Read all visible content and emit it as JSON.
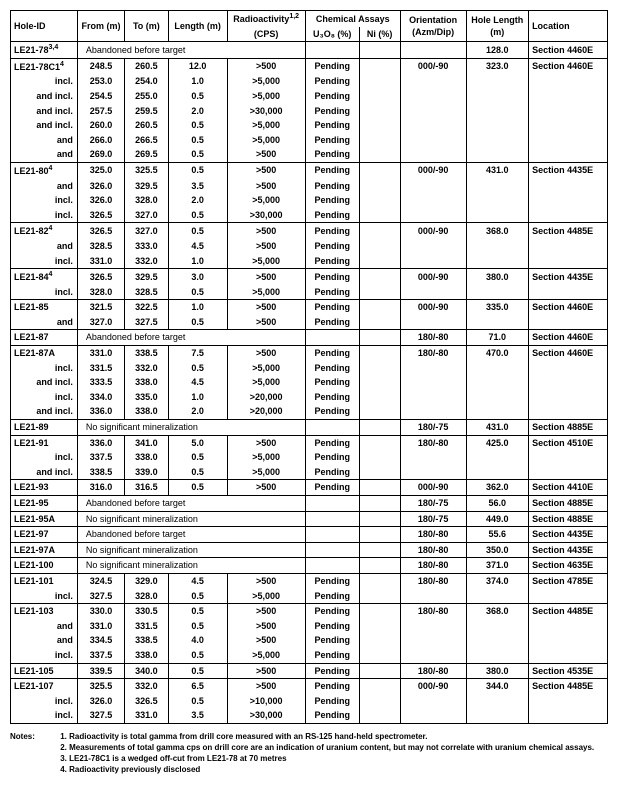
{
  "headers": {
    "hole": "Hole-ID",
    "from": "From (m)",
    "to": "To (m)",
    "len": "Length (m)",
    "rad_top": "Radioactivity",
    "rad_sup": "1,2",
    "rad_sub": "(CPS)",
    "chem": "Chemical Assays",
    "u": "U₃O₈ (%)",
    "ni": "Ni (%)",
    "orient": "Orientation (Azm/Dip)",
    "hl": "Hole Length (m)",
    "loc": "Location"
  },
  "rows": [
    {
      "sec": true,
      "hole": "LE21-78",
      "sup": "3,4",
      "note": "Abandoned before target",
      "hl": "128.0",
      "loc": "Section 4460E"
    },
    {
      "sec": true,
      "hole": "LE21-78C1",
      "sup": "4",
      "from": "248.5",
      "to": "260.5",
      "len": "12.0",
      "rad": ">500",
      "u": "Pending",
      "or": "000/-90",
      "hl": "323.0",
      "loc": "Section 4460E"
    },
    {
      "hole": "incl.",
      "from": "253.0",
      "to": "254.0",
      "len": "1.0",
      "rad": ">5,000",
      "u": "Pending"
    },
    {
      "hole": "and incl.",
      "from": "254.5",
      "to": "255.0",
      "len": "0.5",
      "rad": ">5,000",
      "u": "Pending"
    },
    {
      "hole": "and incl.",
      "from": "257.5",
      "to": "259.5",
      "len": "2.0",
      "rad": ">30,000",
      "u": "Pending"
    },
    {
      "hole": "and incl.",
      "from": "260.0",
      "to": "260.5",
      "len": "0.5",
      "rad": ">5,000",
      "u": "Pending"
    },
    {
      "hole": "and",
      "from": "266.0",
      "to": "266.5",
      "len": "0.5",
      "rad": ">5,000",
      "u": "Pending"
    },
    {
      "hole": "and",
      "from": "269.0",
      "to": "269.5",
      "len": "0.5",
      "rad": ">500",
      "u": "Pending"
    },
    {
      "sec": true,
      "hole": "LE21-80",
      "sup": "4",
      "from": "325.0",
      "to": "325.5",
      "len": "0.5",
      "rad": ">500",
      "u": "Pending",
      "or": "000/-90",
      "hl": "431.0",
      "loc": "Section 4435E"
    },
    {
      "hole": "and",
      "from": "326.0",
      "to": "329.5",
      "len": "3.5",
      "rad": ">500",
      "u": "Pending"
    },
    {
      "hole": "incl.",
      "from": "326.0",
      "to": "328.0",
      "len": "2.0",
      "rad": ">5,000",
      "u": "Pending"
    },
    {
      "hole": "incl.",
      "from": "326.5",
      "to": "327.0",
      "len": "0.5",
      "rad": ">30,000",
      "u": "Pending"
    },
    {
      "sec": true,
      "hole": "LE21-82",
      "sup": "4",
      "from": "326.5",
      "to": "327.0",
      "len": "0.5",
      "rad": ">500",
      "u": "Pending",
      "or": "000/-90",
      "hl": "368.0",
      "loc": "Section 4485E"
    },
    {
      "hole": "and",
      "from": "328.5",
      "to": "333.0",
      "len": "4.5",
      "rad": ">500",
      "u": "Pending"
    },
    {
      "hole": "incl.",
      "from": "331.0",
      "to": "332.0",
      "len": "1.0",
      "rad": ">5,000",
      "u": "Pending"
    },
    {
      "sec": true,
      "hole": "LE21-84",
      "sup": "4",
      "from": "326.5",
      "to": "329.5",
      "len": "3.0",
      "rad": ">500",
      "u": "Pending",
      "or": "000/-90",
      "hl": "380.0",
      "loc": "Section 4435E"
    },
    {
      "hole": "incl.",
      "from": "328.0",
      "to": "328.5",
      "len": "0.5",
      "rad": ">5,000",
      "u": "Pending"
    },
    {
      "sec": true,
      "hole": "LE21-85",
      "from": "321.5",
      "to": "322.5",
      "len": "1.0",
      "rad": ">500",
      "u": "Pending",
      "or": "000/-90",
      "hl": "335.0",
      "loc": "Section 4460E"
    },
    {
      "hole": "and",
      "from": "327.0",
      "to": "327.5",
      "len": "0.5",
      "rad": ">500",
      "u": "Pending"
    },
    {
      "sec": true,
      "hole": "LE21-87",
      "note": "Abandoned before target",
      "or": "180/-80",
      "hl": "71.0",
      "loc": "Section 4460E"
    },
    {
      "sec": true,
      "hole": "LE21-87A",
      "from": "331.0",
      "to": "338.5",
      "len": "7.5",
      "rad": ">500",
      "u": "Pending",
      "or": "180/-80",
      "hl": "470.0",
      "loc": "Section 4460E"
    },
    {
      "hole": "incl.",
      "from": "331.5",
      "to": "332.0",
      "len": "0.5",
      "rad": ">5,000",
      "u": "Pending"
    },
    {
      "hole": "and incl.",
      "from": "333.5",
      "to": "338.0",
      "len": "4.5",
      "rad": ">5,000",
      "u": "Pending"
    },
    {
      "hole": "incl.",
      "from": "334.0",
      "to": "335.0",
      "len": "1.0",
      "rad": ">20,000",
      "u": "Pending"
    },
    {
      "hole": "and incl.",
      "from": "336.0",
      "to": "338.0",
      "len": "2.0",
      "rad": ">20,000",
      "u": "Pending"
    },
    {
      "sec": true,
      "hole": "LE21-89",
      "note": "No significant mineralization",
      "or": "180/-75",
      "hl": "431.0",
      "loc": "Section 4885E"
    },
    {
      "sec": true,
      "hole": "LE21-91",
      "from": "336.0",
      "to": "341.0",
      "len": "5.0",
      "rad": ">500",
      "u": "Pending",
      "or": "180/-80",
      "hl": "425.0",
      "loc": "Section 4510E"
    },
    {
      "hole": "incl.",
      "from": "337.5",
      "to": "338.0",
      "len": "0.5",
      "rad": ">5,000",
      "u": "Pending"
    },
    {
      "hole": "and incl.",
      "from": "338.5",
      "to": "339.0",
      "len": "0.5",
      "rad": ">5,000",
      "u": "Pending"
    },
    {
      "sec": true,
      "hole": "LE21-93",
      "from": "316.0",
      "to": "316.5",
      "len": "0.5",
      "rad": ">500",
      "u": "Pending",
      "or": "000/-90",
      "hl": "362.0",
      "loc": "Section 4410E"
    },
    {
      "sec": true,
      "hole": "LE21-95",
      "note": "Abandoned before target",
      "or": "180/-75",
      "hl": "56.0",
      "loc": "Section 4885E"
    },
    {
      "sec": true,
      "hole": "LE21-95A",
      "note": "No significant mineralization",
      "or": "180/-75",
      "hl": "449.0",
      "loc": "Section 4885E"
    },
    {
      "sec": true,
      "hole": "LE21-97",
      "note": "Abandoned before target",
      "or": "180/-80",
      "hl": "55.6",
      "loc": "Section 4435E"
    },
    {
      "sec": true,
      "hole": "LE21-97A",
      "note": "No significant mineralization",
      "or": "180/-80",
      "hl": "350.0",
      "loc": "Section 4435E"
    },
    {
      "sec": true,
      "hole": "LE21-100",
      "note": "No significant mineralization",
      "or": "180/-80",
      "hl": "371.0",
      "loc": "Section 4635E"
    },
    {
      "sec": true,
      "hole": "LE21-101",
      "from": "324.5",
      "to": "329.0",
      "len": "4.5",
      "rad": ">500",
      "u": "Pending",
      "or": "180/-80",
      "hl": "374.0",
      "loc": "Section 4785E"
    },
    {
      "hole": "incl.",
      "from": "327.5",
      "to": "328.0",
      "len": "0.5",
      "rad": ">5,000",
      "u": "Pending"
    },
    {
      "sec": true,
      "hole": "LE21-103",
      "from": "330.0",
      "to": "330.5",
      "len": "0.5",
      "rad": ">500",
      "u": "Pending",
      "or": "180/-80",
      "hl": "368.0",
      "loc": "Section 4485E"
    },
    {
      "hole": "and",
      "from": "331.0",
      "to": "331.5",
      "len": "0.5",
      "rad": ">500",
      "u": "Pending"
    },
    {
      "hole": "and",
      "from": "334.5",
      "to": "338.5",
      "len": "4.0",
      "rad": ">500",
      "u": "Pending"
    },
    {
      "hole": "incl.",
      "from": "337.5",
      "to": "338.0",
      "len": "0.5",
      "rad": ">5,000",
      "u": "Pending"
    },
    {
      "sec": true,
      "hole": "LE21-105",
      "from": "339.5",
      "to": "340.0",
      "len": "0.5",
      "rad": ">500",
      "u": "Pending",
      "or": "180/-80",
      "hl": "380.0",
      "loc": "Section 4535E"
    },
    {
      "sec": true,
      "hole": "LE21-107",
      "from": "325.5",
      "to": "332.0",
      "len": "6.5",
      "rad": ">500",
      "u": "Pending",
      "or": "000/-90",
      "hl": "344.0",
      "loc": "Section 4485E"
    },
    {
      "hole": "incl.",
      "from": "326.0",
      "to": "326.5",
      "len": "0.5",
      "rad": ">10,000",
      "u": "Pending"
    },
    {
      "last": true,
      "hole": "incl.",
      "from": "327.5",
      "to": "331.0",
      "len": "3.5",
      "rad": ">30,000",
      "u": "Pending"
    }
  ],
  "notes": {
    "label": "Notes:",
    "items": [
      "1. Radioactivity is total gamma from drill core measured with an RS-125 hand-held spectrometer.",
      "2. Measurements of total gamma cps on drill core are an indication of uranium content, but may not correlate with uranium chemical assays.",
      "3. LE21-78C1 is a wedged off-cut from LE21-78 at 70 metres",
      "4. Radioactivity previously disclosed"
    ]
  }
}
